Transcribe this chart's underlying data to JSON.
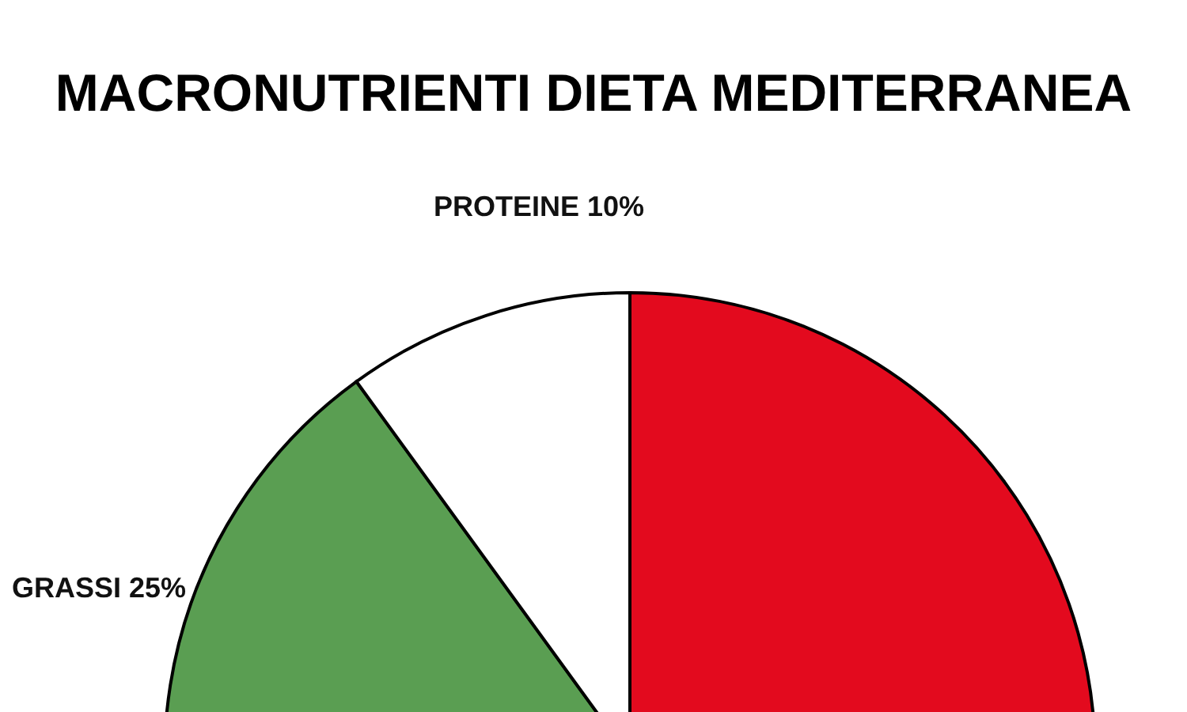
{
  "chart_data": {
    "type": "pie",
    "title": "MACRONUTRIENTI DIETA MEDITERRANEA",
    "categories": [
      null,
      "GRASSI",
      "PROTEINE"
    ],
    "values": [
      65,
      25,
      10
    ],
    "value_labels": [
      null,
      "25%",
      "10%"
    ],
    "colors": [
      "#e30a1e",
      "#5a9e52",
      "#ffffff"
    ]
  }
}
